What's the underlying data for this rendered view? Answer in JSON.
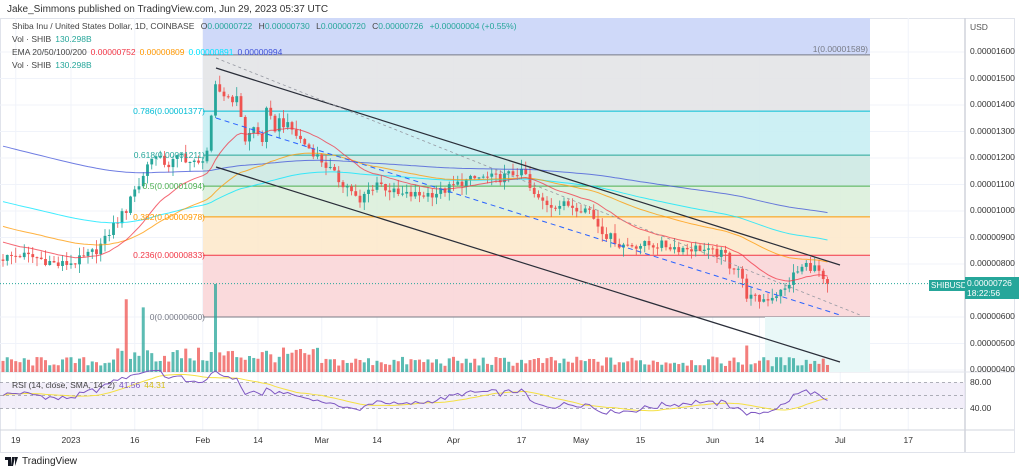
{
  "header": {
    "published": "Jake_Simmons published on TradingView.com, Jun 29, 2023 05:37 UTC"
  },
  "legend": {
    "symbol": "Shiba Inu / United States Dollar, 1D, COINBASE",
    "o_label": "O",
    "o": "0.00000722",
    "h_label": "H",
    "h": "0.00000730",
    "l_label": "L",
    "l": "0.00000720",
    "c_label": "C",
    "c": "0.00000726",
    "change": "+0.00000004 (+0.55%)",
    "vol_label": "Vol · SHIB",
    "vol": "130.298B",
    "ema_label": "EMA 20/50/100/200",
    "ema20": "0.00000752",
    "ema50": "0.00000809",
    "ema100": "0.00000891",
    "ema200": "0.00000994",
    "vol2_label": "Vol · SHIB",
    "vol2": "130.298B"
  },
  "rsi_legend": {
    "label": "RSI (14, close, SMA, 14, 2)",
    "rsi": "41.56",
    "sma": "44.31"
  },
  "axis": {
    "currency": "USD",
    "price_ticks": [
      "0.00001600",
      "0.00001500",
      "0.00001400",
      "0.00001300",
      "0.00001200",
      "0.00001100",
      "0.00001000",
      "0.00000900",
      "0.00000800",
      "0.00000600",
      "0.00000500",
      "0.00000400"
    ],
    "rsi_ticks": [
      "80.00",
      "40.00"
    ]
  },
  "dates": [
    {
      "label": "19",
      "day": 3
    },
    {
      "label": "2023",
      "day": 16
    },
    {
      "label": "16",
      "day": 31
    },
    {
      "label": "Feb",
      "day": 47
    },
    {
      "label": "14",
      "day": 60
    },
    {
      "label": "Mar",
      "day": 75
    },
    {
      "label": "14",
      "day": 88
    },
    {
      "label": "Apr",
      "day": 106
    },
    {
      "label": "17",
      "day": 122
    },
    {
      "label": "May",
      "day": 136
    },
    {
      "label": "15",
      "day": 150
    },
    {
      "label": "Jun",
      "day": 167
    },
    {
      "label": "14",
      "day": 178
    },
    {
      "label": "Jul",
      "day": 197
    },
    {
      "label": "17",
      "day": 213
    }
  ],
  "fib": [
    {
      "label": "1(0.00001589)",
      "price": 15.89,
      "color": "#787b86"
    },
    {
      "label": "0.786(0.00001377)",
      "price": 13.77,
      "color": "#00bcd4"
    },
    {
      "label": "0.618(0.00001211)",
      "price": 12.11,
      "color": "#26a69a"
    },
    {
      "label": "0.5(0.00001094)",
      "price": 10.94,
      "color": "#4caf50"
    },
    {
      "label": "0.382(0.00000978)",
      "price": 9.78,
      "color": "#ff9800"
    },
    {
      "label": "0.236(0.00000833)",
      "price": 8.33,
      "color": "#f23645"
    },
    {
      "label": "0(0.00000600)",
      "price": 6.0,
      "color": "#787b86"
    }
  ],
  "current": {
    "symbol": "SHIBUSD",
    "price": "0.00000726",
    "countdown": "18:22:56",
    "value": 7.26
  },
  "colors": {
    "up": "#26a69a",
    "down": "#ef5350",
    "ema20": "#f23645",
    "ema50": "#ff9800",
    "ema100": "#00e5ff",
    "ema200": "#3f51d8",
    "rsi": "#7e57c2",
    "rsi_sma": "#f5e042"
  },
  "chart_data": {
    "type": "candlestick",
    "unit": "1e-6 USD",
    "close_points": [
      [
        0,
        8.23
      ],
      [
        4,
        8.34
      ],
      [
        8,
        8.23
      ],
      [
        11,
        8.08
      ],
      [
        13,
        7.96
      ],
      [
        17,
        8.08
      ],
      [
        19,
        8.23
      ],
      [
        22,
        8.53
      ],
      [
        24,
        8.91
      ],
      [
        26,
        9.47
      ],
      [
        29,
        10.04
      ],
      [
        30,
        10.6
      ],
      [
        32,
        10.98
      ],
      [
        35,
        12.11
      ],
      [
        37,
        11.92
      ],
      [
        39,
        11.74
      ],
      [
        42,
        12.11
      ],
      [
        44,
        11.85
      ],
      [
        46,
        11.74
      ],
      [
        48,
        12.3
      ],
      [
        49,
        13.43
      ],
      [
        50,
        14.64
      ],
      [
        52,
        14.38
      ],
      [
        55,
        14.19
      ],
      [
        56,
        13.62
      ],
      [
        57,
        12.68
      ],
      [
        59,
        13.13
      ],
      [
        61,
        12.68
      ],
      [
        62,
        13.74
      ],
      [
        64,
        13.13
      ],
      [
        65,
        13.43
      ],
      [
        68,
        13.06
      ],
      [
        70,
        12.68
      ],
      [
        73,
        12.23
      ],
      [
        77,
        11.55
      ],
      [
        79,
        11.17
      ],
      [
        82,
        10.79
      ],
      [
        84,
        10.23
      ],
      [
        85,
        10.6
      ],
      [
        88,
        11.09
      ],
      [
        91,
        10.79
      ],
      [
        93,
        10.6
      ],
      [
        98,
        10.6
      ],
      [
        103,
        10.72
      ],
      [
        108,
        11.09
      ],
      [
        112,
        11.25
      ],
      [
        117,
        11.25
      ],
      [
        121,
        11.47
      ],
      [
        123,
        11.36
      ],
      [
        124,
        10.79
      ],
      [
        126,
        10.42
      ],
      [
        129,
        10.23
      ],
      [
        133,
        10.23
      ],
      [
        138,
        10.04
      ],
      [
        140,
        9.47
      ],
      [
        142,
        9.09
      ],
      [
        144,
        8.91
      ],
      [
        145,
        8.72
      ],
      [
        150,
        8.72
      ],
      [
        155,
        8.72
      ],
      [
        159,
        8.6
      ],
      [
        164,
        8.6
      ],
      [
        166,
        8.45
      ],
      [
        170,
        8.34
      ],
      [
        171,
        7.96
      ],
      [
        173,
        7.85
      ],
      [
        175,
        6.83
      ],
      [
        176,
        6.72
      ],
      [
        178,
        6.64
      ],
      [
        180,
        6.72
      ],
      [
        184,
        7.02
      ],
      [
        186,
        7.58
      ],
      [
        188,
        7.85
      ],
      [
        189,
        7.96
      ],
      [
        191,
        7.85
      ],
      [
        192,
        7.7
      ],
      [
        193,
        7.28
      ],
      [
        194,
        7.26
      ]
    ],
    "volume_spikes": [
      [
        29,
        3.0
      ],
      [
        33,
        5.5
      ],
      [
        50,
        5.5
      ],
      [
        175,
        2.5
      ],
      [
        186,
        1.8
      ],
      [
        123,
        1.2
      ],
      [
        88,
        1.3
      ]
    ],
    "ema_seed": {
      "ema20": 8.9,
      "ema50": 9.47,
      "ema100": 10.4,
      "ema200": 12.49
    }
  }
}
